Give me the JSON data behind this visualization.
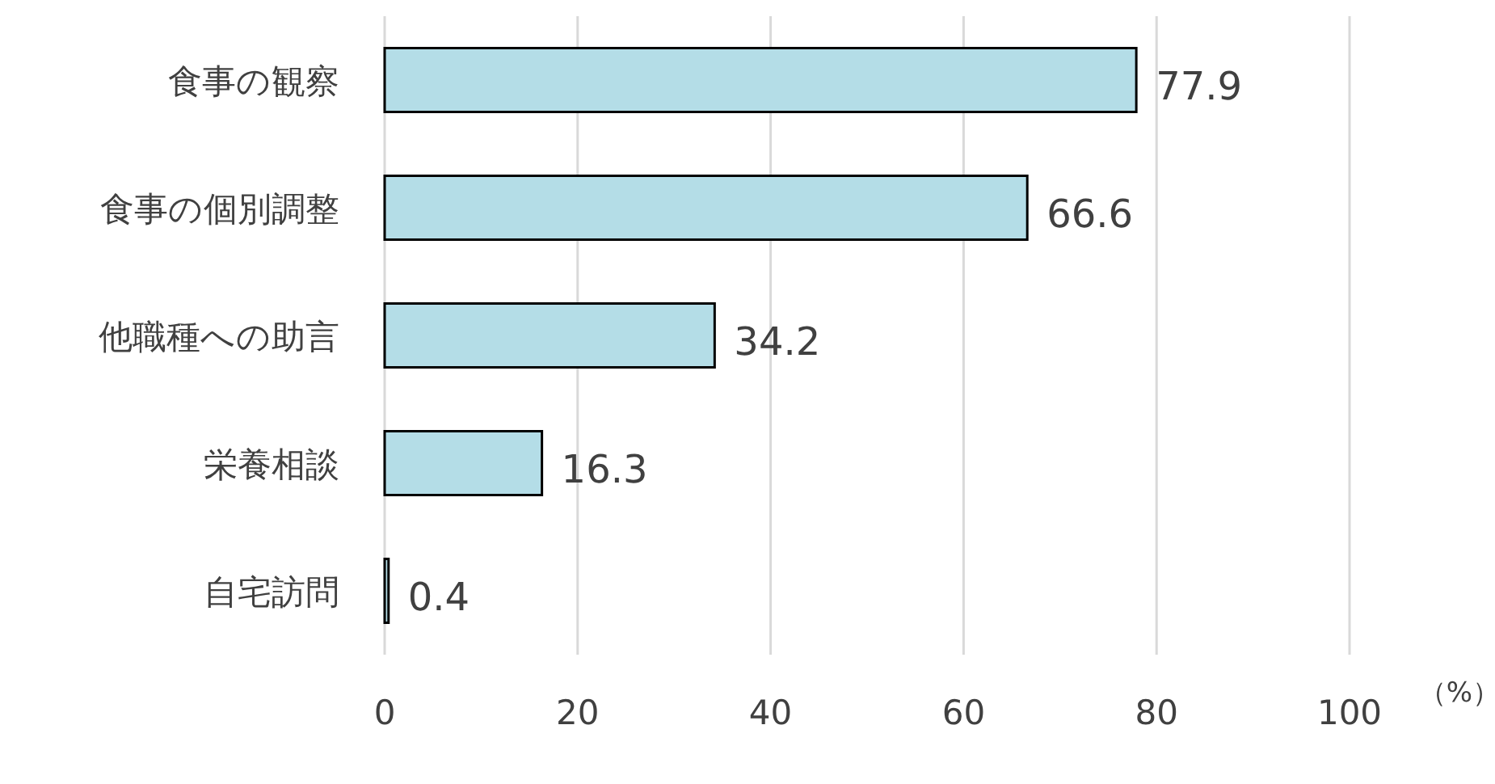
{
  "chart_data": {
    "type": "bar",
    "orientation": "horizontal",
    "categories": [
      "食事の観察",
      "食事の個別調整",
      "他職種への助言",
      "栄養相談",
      "自宅訪問"
    ],
    "values": [
      77.9,
      66.6,
      34.2,
      16.3,
      0.4
    ],
    "color": "#b4dde7",
    "xlim": [
      0,
      100
    ],
    "xticks": [
      0,
      20,
      40,
      60,
      80,
      100
    ],
    "grid": "x",
    "data_labels": true,
    "xlabel": "（%）"
  }
}
